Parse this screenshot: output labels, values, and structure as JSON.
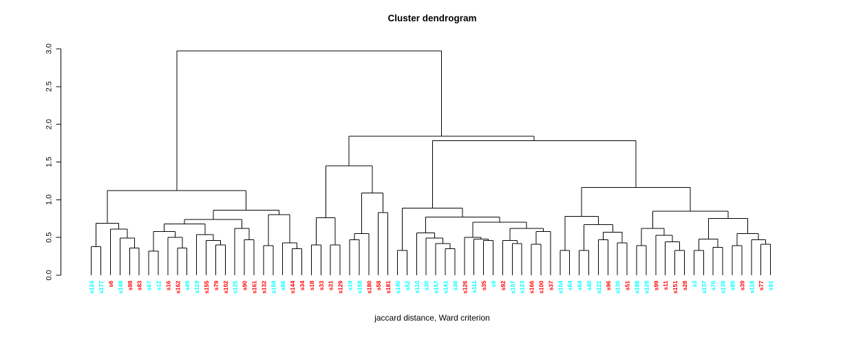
{
  "chart_data": {
    "type": "dendrogram",
    "title": "Cluster dendrogram",
    "xlabel": "jaccard distance, Ward criterion",
    "ylabel": "",
    "y_ticks": [
      "0.0",
      "0.5",
      "1.0",
      "1.5",
      "2.0",
      "2.5",
      "3.0"
    ],
    "y_tick_values": [
      0,
      0.5,
      1,
      1.5,
      2,
      2.5,
      3
    ],
    "ylim": [
      0,
      3.0
    ],
    "grid": false,
    "legend": "none",
    "line_color": "#000000",
    "label_colors": {
      "red": "#FF0000",
      "cyan": "#00FFFF"
    },
    "leaves": [
      {
        "label": "s124",
        "color": "cyan"
      },
      {
        "label": "s177",
        "color": "cyan"
      },
      {
        "label": "s6",
        "color": "red"
      },
      {
        "label": "s148",
        "color": "cyan"
      },
      {
        "label": "s98",
        "color": "red"
      },
      {
        "label": "s83",
        "color": "red"
      },
      {
        "label": "s67",
        "color": "cyan"
      },
      {
        "label": "s12",
        "color": "cyan"
      },
      {
        "label": "s16",
        "color": "red"
      },
      {
        "label": "s162",
        "color": "red"
      },
      {
        "label": "s49",
        "color": "cyan"
      },
      {
        "label": "s119",
        "color": "cyan"
      },
      {
        "label": "s155",
        "color": "red"
      },
      {
        "label": "s79",
        "color": "red"
      },
      {
        "label": "s102",
        "color": "red"
      },
      {
        "label": "s125",
        "color": "cyan"
      },
      {
        "label": "s90",
        "color": "red"
      },
      {
        "label": "s161",
        "color": "red"
      },
      {
        "label": "s132",
        "color": "red"
      },
      {
        "label": "s159",
        "color": "cyan"
      },
      {
        "label": "s66",
        "color": "cyan"
      },
      {
        "label": "s144",
        "color": "red"
      },
      {
        "label": "s34",
        "color": "red"
      },
      {
        "label": "s18",
        "color": "red"
      },
      {
        "label": "s33",
        "color": "red"
      },
      {
        "label": "s31",
        "color": "red"
      },
      {
        "label": "s129",
        "color": "red"
      },
      {
        "label": "s19",
        "color": "cyan"
      },
      {
        "label": "s158",
        "color": "cyan"
      },
      {
        "label": "s180",
        "color": "red"
      },
      {
        "label": "s58",
        "color": "red"
      },
      {
        "label": "s181",
        "color": "red"
      },
      {
        "label": "s140",
        "color": "cyan"
      },
      {
        "label": "s52",
        "color": "cyan"
      },
      {
        "label": "s110",
        "color": "cyan"
      },
      {
        "label": "s30",
        "color": "cyan"
      },
      {
        "label": "s157",
        "color": "cyan"
      },
      {
        "label": "s141",
        "color": "cyan"
      },
      {
        "label": "s36",
        "color": "cyan"
      },
      {
        "label": "s126",
        "color": "red"
      },
      {
        "label": "s111",
        "color": "cyan"
      },
      {
        "label": "s35",
        "color": "red"
      },
      {
        "label": "s9",
        "color": "cyan"
      },
      {
        "label": "s92",
        "color": "red"
      },
      {
        "label": "s107",
        "color": "cyan"
      },
      {
        "label": "s123",
        "color": "cyan"
      },
      {
        "label": "s166",
        "color": "red"
      },
      {
        "label": "s100",
        "color": "red"
      },
      {
        "label": "s37",
        "color": "red"
      },
      {
        "label": "s104",
        "color": "cyan"
      },
      {
        "label": "s54",
        "color": "cyan"
      },
      {
        "label": "s64",
        "color": "cyan"
      },
      {
        "label": "s40",
        "color": "cyan"
      },
      {
        "label": "s122",
        "color": "cyan"
      },
      {
        "label": "s96",
        "color": "red"
      },
      {
        "label": "s130",
        "color": "cyan"
      },
      {
        "label": "s51",
        "color": "red"
      },
      {
        "label": "s188",
        "color": "cyan"
      },
      {
        "label": "s128",
        "color": "cyan"
      },
      {
        "label": "s99",
        "color": "red"
      },
      {
        "label": "s11",
        "color": "red"
      },
      {
        "label": "s151",
        "color": "red"
      },
      {
        "label": "s28",
        "color": "red"
      },
      {
        "label": "s3",
        "color": "cyan"
      },
      {
        "label": "s137",
        "color": "cyan"
      },
      {
        "label": "s70",
        "color": "cyan"
      },
      {
        "label": "s139",
        "color": "cyan"
      },
      {
        "label": "s85",
        "color": "cyan"
      },
      {
        "label": "s39",
        "color": "red"
      },
      {
        "label": "s118",
        "color": "cyan"
      },
      {
        "label": "s77",
        "color": "red"
      },
      {
        "label": "s91",
        "color": "cyan"
      }
    ],
    "tree": {
      "h": 2.97,
      "c": [
        {
          "h": 1.12,
          "c": [
            {
              "h": 0.69,
              "c": [
                {
                  "h": 0.38,
                  "c": [
                    0,
                    1
                  ]
                },
                {
                  "h": 0.61,
                  "c": [
                    2,
                    {
                      "h": 0.49,
                      "c": [
                        3,
                        {
                          "h": 0.36,
                          "c": [
                            4,
                            5
                          ]
                        }
                      ]
                    }
                  ]
                }
              ]
            },
            {
              "h": 0.86,
              "c": [
                {
                  "h": 0.74,
                  "c": [
                    {
                      "h": 0.68,
                      "c": [
                        {
                          "h": 0.58,
                          "c": [
                            {
                              "h": 0.32,
                              "c": [
                                6,
                                7
                              ]
                            },
                            {
                              "h": 0.5,
                              "c": [
                                8,
                                {
                                  "h": 0.36,
                                  "c": [
                                    9,
                                    10
                                  ]
                                }
                              ]
                            }
                          ]
                        },
                        {
                          "h": 0.54,
                          "c": [
                            11,
                            {
                              "h": 0.46,
                              "c": [
                                12,
                                {
                                  "h": 0.4,
                                  "c": [
                                    13,
                                    14
                                  ]
                                }
                              ]
                            }
                          ]
                        }
                      ]
                    },
                    {
                      "h": 0.62,
                      "c": [
                        15,
                        {
                          "h": 0.47,
                          "c": [
                            16,
                            17
                          ]
                        }
                      ]
                    }
                  ]
                },
                {
                  "h": 0.8,
                  "c": [
                    {
                      "h": 0.39,
                      "c": [
                        18,
                        19
                      ]
                    },
                    {
                      "h": 0.43,
                      "c": [
                        20,
                        {
                          "h": 0.35,
                          "c": [
                            21,
                            22
                          ]
                        }
                      ]
                    }
                  ]
                }
              ]
            }
          ]
        },
        {
          "h": 1.84,
          "c": [
            {
              "h": 1.45,
              "c": [
                {
                  "h": 0.76,
                  "c": [
                    {
                      "h": 0.4,
                      "c": [
                        23,
                        24
                      ]
                    },
                    {
                      "h": 0.4,
                      "c": [
                        25,
                        26
                      ]
                    }
                  ]
                },
                {
                  "h": 1.09,
                  "c": [
                    {
                      "h": 0.55,
                      "c": [
                        {
                          "h": 0.47,
                          "c": [
                            27,
                            28
                          ]
                        },
                        29
                      ]
                    },
                    {
                      "h": 0.83,
                      "c": [
                        30,
                        31
                      ]
                    }
                  ]
                }
              ]
            },
            {
              "h": 1.78,
              "c": [
                {
                  "h": 0.89,
                  "c": [
                    {
                      "h": 0.33,
                      "c": [
                        32,
                        33
                      ]
                    },
                    {
                      "h": 0.77,
                      "c": [
                        {
                          "h": 0.56,
                          "c": [
                            34,
                            {
                              "h": 0.49,
                              "c": [
                                35,
                                {
                                  "h": 0.42,
                                  "c": [
                                    36,
                                    {
                                      "h": 0.35,
                                      "c": [
                                        37,
                                        38
                                      ]
                                    }
                                  ]
                                }
                              ]
                            }
                          ]
                        },
                        {
                          "h": 0.7,
                          "c": [
                            {
                              "h": 0.5,
                              "c": [
                                39,
                                {
                                  "h": 0.48,
                                  "c": [
                                    40,
                                    {
                                      "h": 0.46,
                                      "c": [
                                        41,
                                        42
                                      ]
                                    }
                                  ]
                                }
                              ]
                            },
                            {
                              "h": 0.62,
                              "c": [
                                {
                                  "h": 0.46,
                                  "c": [
                                    43,
                                    {
                                      "h": 0.42,
                                      "c": [
                                        44,
                                        45
                                      ]
                                    }
                                  ]
                                },
                                {
                                  "h": 0.58,
                                  "c": [
                                    {
                                      "h": 0.41,
                                      "c": [
                                        46,
                                        47
                                      ]
                                    },
                                    48
                                  ]
                                }
                              ]
                            }
                          ]
                        }
                      ]
                    }
                  ]
                },
                {
                  "h": 1.16,
                  "c": [
                    {
                      "h": 0.78,
                      "c": [
                        {
                          "h": 0.33,
                          "c": [
                            49,
                            50
                          ]
                        },
                        {
                          "h": 0.67,
                          "c": [
                            {
                              "h": 0.33,
                              "c": [
                                51,
                                52
                              ]
                            },
                            {
                              "h": 0.57,
                              "c": [
                                {
                                  "h": 0.47,
                                  "c": [
                                    53,
                                    54
                                  ]
                                },
                                {
                                  "h": 0.43,
                                  "c": [
                                    55,
                                    56
                                  ]
                                }
                              ]
                            }
                          ]
                        }
                      ]
                    },
                    {
                      "h": 0.85,
                      "c": [
                        {
                          "h": 0.62,
                          "c": [
                            {
                              "h": 0.39,
                              "c": [
                                57,
                                58
                              ]
                            },
                            {
                              "h": 0.53,
                              "c": [
                                59,
                                {
                                  "h": 0.44,
                                  "c": [
                                    60,
                                    {
                                      "h": 0.33,
                                      "c": [
                                        61,
                                        62
                                      ]
                                    }
                                  ]
                                }
                              ]
                            }
                          ]
                        },
                        {
                          "h": 0.75,
                          "c": [
                            {
                              "h": 0.48,
                              "c": [
                                {
                                  "h": 0.33,
                                  "c": [
                                    63,
                                    64
                                  ]
                                },
                                {
                                  "h": 0.37,
                                  "c": [
                                    65,
                                    66
                                  ]
                                }
                              ]
                            },
                            {
                              "h": 0.55,
                              "c": [
                                {
                                  "h": 0.39,
                                  "c": [
                                    67,
                                    68
                                  ]
                                },
                                {
                                  "h": 0.47,
                                  "c": [
                                    69,
                                    {
                                      "h": 0.41,
                                      "c": [
                                        70,
                                        71
                                      ]
                                    }
                                  ]
                                }
                              ]
                            }
                          ]
                        }
                      ]
                    }
                  ]
                }
              ]
            }
          ]
        }
      ]
    }
  }
}
